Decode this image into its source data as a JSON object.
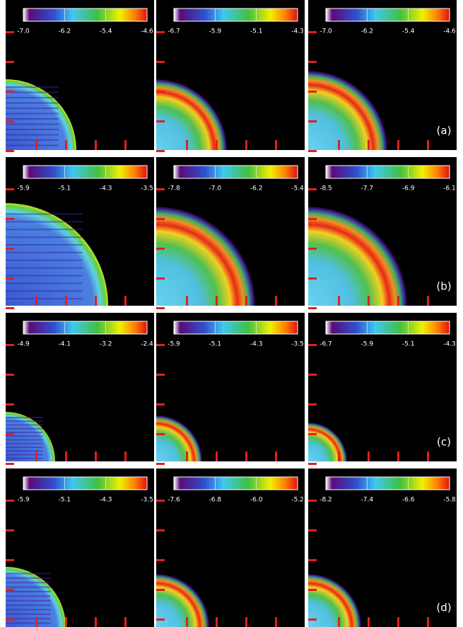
{
  "figure": {
    "rows": [
      {
        "label": "(a)",
        "panels": [
          {
            "colorbar_ticks": [
              "-7.0",
              "-6.2",
              "-5.4",
              "-4.6"
            ]
          },
          {
            "colorbar_ticks": [
              "-6.7",
              "-5.9",
              "-5.1",
              "-4.3"
            ]
          },
          {
            "colorbar_ticks": [
              "-7.0",
              "-6.2",
              "-5.4",
              "-4.6"
            ]
          }
        ]
      },
      {
        "label": "(b)",
        "panels": [
          {
            "colorbar_ticks": [
              "-5.9",
              "-5.1",
              "-4.3",
              "-3.5"
            ]
          },
          {
            "colorbar_ticks": [
              "-7.8",
              "-7.0",
              "-6.2",
              "-5.4"
            ]
          },
          {
            "colorbar_ticks": [
              "-8.5",
              "-7.7",
              "-6.9",
              "-6.1"
            ]
          }
        ]
      },
      {
        "label": "(c)",
        "panels": [
          {
            "colorbar_ticks": [
              "-4.9",
              "-4.1",
              "-3.2",
              "-2.4"
            ]
          },
          {
            "colorbar_ticks": [
              "-5.9",
              "-5.1",
              "-4.3",
              "-3.5"
            ]
          },
          {
            "colorbar_ticks": [
              "-6.7",
              "-5.9",
              "-5.1",
              "-4.3"
            ]
          }
        ]
      },
      {
        "label": "(d)",
        "panels": [
          {
            "colorbar_ticks": [
              "-5.9",
              "-5.1",
              "-4.3",
              "-3.5"
            ]
          },
          {
            "colorbar_ticks": [
              "-7.6",
              "-6.8",
              "-6.0",
              "-5.2"
            ]
          },
          {
            "colorbar_ticks": [
              "-8.2",
              "-7.4",
              "-6.6",
              "-5.8"
            ]
          }
        ]
      }
    ]
  }
}
